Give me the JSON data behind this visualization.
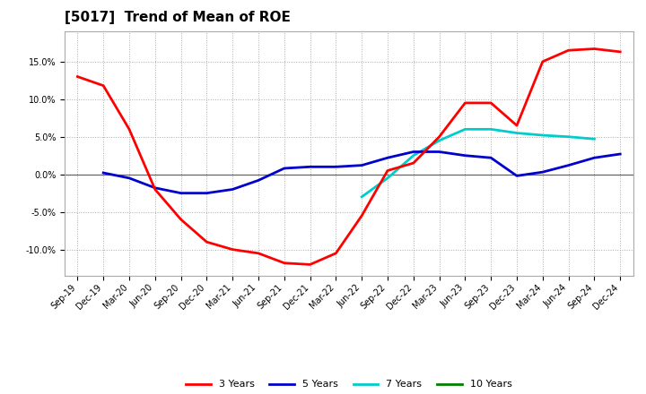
{
  "title": "[5017]  Trend of Mean of ROE",
  "x_labels": [
    "Sep-19",
    "Dec-19",
    "Mar-20",
    "Jun-20",
    "Sep-20",
    "Dec-20",
    "Mar-21",
    "Jun-21",
    "Sep-21",
    "Dec-21",
    "Mar-22",
    "Jun-22",
    "Sep-22",
    "Dec-22",
    "Mar-23",
    "Jun-23",
    "Sep-23",
    "Dec-23",
    "Mar-24",
    "Jun-24",
    "Sep-24",
    "Dec-24"
  ],
  "ylim": [
    -0.135,
    0.19
  ],
  "yticks": [
    -0.1,
    -0.05,
    0.0,
    0.05,
    0.1,
    0.15
  ],
  "roe_3y": [
    0.13,
    0.118,
    0.06,
    -0.02,
    -0.06,
    -0.09,
    -0.1,
    -0.105,
    -0.118,
    -0.12,
    -0.105,
    -0.055,
    0.005,
    0.015,
    0.05,
    0.095,
    0.095,
    0.065,
    0.15,
    0.165,
    0.167,
    0.163
  ],
  "roe_5y": [
    null,
    0.002,
    -0.005,
    -0.018,
    -0.025,
    -0.025,
    -0.02,
    -0.008,
    0.008,
    0.01,
    0.01,
    0.012,
    0.022,
    0.03,
    0.03,
    0.025,
    0.022,
    -0.002,
    0.003,
    0.012,
    0.022,
    0.027
  ],
  "roe_7y": [
    null,
    null,
    null,
    null,
    null,
    null,
    null,
    null,
    null,
    null,
    null,
    -0.03,
    -0.005,
    0.025,
    0.045,
    0.06,
    0.06,
    0.055,
    0.052,
    0.05,
    0.047,
    null
  ],
  "roe_10y": [
    null,
    null,
    null,
    null,
    null,
    null,
    null,
    null,
    null,
    null,
    null,
    null,
    null,
    null,
    null,
    null,
    null,
    null,
    null,
    null,
    null,
    null
  ],
  "color_3y": "#FF0000",
  "color_5y": "#0000CC",
  "color_7y": "#00CCCC",
  "color_10y": "#008000",
  "background_color": "#FFFFFF",
  "grid_color": "#AAAAAA",
  "title_fontsize": 11,
  "tick_fontsize": 7,
  "legend_fontsize": 8
}
